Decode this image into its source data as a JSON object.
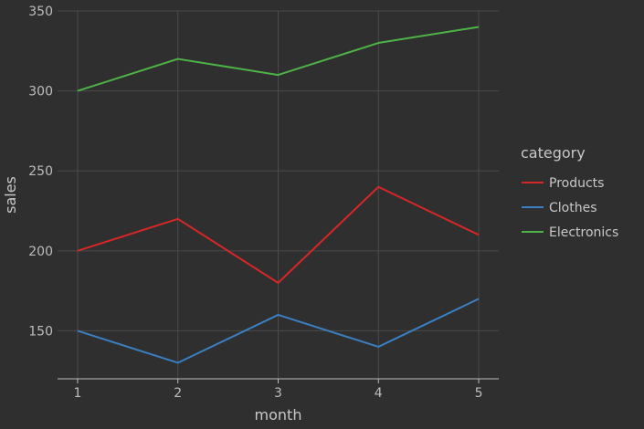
{
  "chart_data": {
    "type": "line",
    "x": [
      1,
      2,
      3,
      4,
      5
    ],
    "xlabel": "month",
    "ylabel": "sales",
    "xticks": [
      "1",
      "2",
      "3",
      "4",
      "5"
    ],
    "yticks": [
      "150",
      "200",
      "250",
      "300",
      "350"
    ],
    "ylim": [
      120,
      350
    ],
    "xlim": [
      0.8,
      5.2
    ],
    "grid": true,
    "legend": {
      "title": "category",
      "placement": "right"
    },
    "series": [
      {
        "name": "Products",
        "color": "#d62728",
        "values": [
          200,
          220,
          180,
          240,
          210
        ]
      },
      {
        "name": "Clothes",
        "color": "#3a7fc1",
        "values": [
          150,
          130,
          160,
          140,
          170
        ]
      },
      {
        "name": "Electronics",
        "color": "#4db347",
        "values": [
          300,
          320,
          310,
          330,
          340
        ]
      }
    ],
    "colors": {
      "background": "#2f2f2f",
      "grid": "#4a4a4a",
      "axis": "#bdbdbd"
    }
  }
}
